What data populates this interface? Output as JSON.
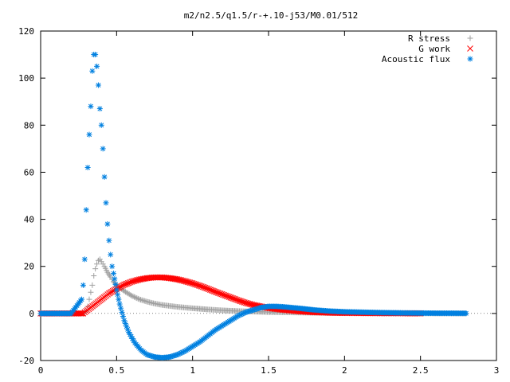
{
  "chart_data": {
    "type": "scatter",
    "title": "m2/n2.5/q1.5/r-+.10-j53/M0.01/512",
    "xlabel": "",
    "ylabel": "",
    "xlim": [
      0,
      3
    ],
    "ylim": [
      -20,
      120
    ],
    "x_ticks": [
      0,
      0.5,
      1,
      1.5,
      2,
      2.5,
      3
    ],
    "x_tick_labels": [
      "0",
      "0.5",
      "1",
      "1.5",
      "2",
      "2.5",
      "3"
    ],
    "y_ticks": [
      -20,
      0,
      20,
      40,
      60,
      80,
      100,
      120
    ],
    "y_tick_labels": [
      "-20",
      "0",
      "20",
      "40",
      "60",
      "80",
      "100",
      "120"
    ],
    "legend_position": "top-right",
    "series": [
      {
        "name": "R stress",
        "marker": "+",
        "color": "#a0a0a0",
        "x": [
          0.0,
          0.1,
          0.2,
          0.28,
          0.3,
          0.31,
          0.32,
          0.33,
          0.34,
          0.35,
          0.36,
          0.37,
          0.38,
          0.39,
          0.4,
          0.42,
          0.44,
          0.46,
          0.48,
          0.5,
          0.55,
          0.6,
          0.65,
          0.7,
          0.75,
          0.8,
          0.9,
          1.0,
          1.1,
          1.2,
          1.3,
          1.4,
          1.5,
          1.6,
          1.8,
          2.0,
          2.2,
          2.4,
          2.6,
          2.8
        ],
        "y": [
          0,
          0,
          0,
          0,
          1,
          3,
          6,
          9,
          12,
          16,
          19,
          21,
          22.5,
          23,
          22,
          20,
          17.5,
          15.5,
          13.5,
          12,
          9.5,
          7.5,
          6,
          5,
          4.2,
          3.6,
          2.8,
          2.2,
          1.7,
          1.3,
          1.0,
          0.8,
          0.6,
          0.5,
          0.3,
          0.2,
          0.1,
          0.05,
          0.02,
          0.01
        ]
      },
      {
        "name": "G work",
        "marker": "x",
        "color": "#ff0000",
        "x": [
          0.0,
          0.1,
          0.2,
          0.28,
          0.3,
          0.35,
          0.4,
          0.45,
          0.5,
          0.55,
          0.6,
          0.65,
          0.7,
          0.75,
          0.8,
          0.85,
          0.9,
          0.95,
          1.0,
          1.05,
          1.1,
          1.15,
          1.2,
          1.25,
          1.3,
          1.35,
          1.4,
          1.5,
          1.6,
          1.7,
          1.8,
          1.9,
          2.0,
          2.2,
          2.4,
          2.5
        ],
        "y": [
          0,
          0,
          0,
          0,
          1,
          3.5,
          6,
          8.5,
          10.5,
          12.2,
          13.5,
          14.4,
          15,
          15.3,
          15.3,
          15,
          14.5,
          13.7,
          12.8,
          11.7,
          10.5,
          9.2,
          8,
          6.8,
          5.6,
          4.5,
          3.6,
          2.3,
          1.5,
          0.9,
          0.5,
          0.3,
          0.2,
          0.1,
          0.05,
          0.02
        ]
      },
      {
        "name": "Acoustic flux",
        "marker": "*",
        "color": "#0080e0",
        "x": [
          0.0,
          0.1,
          0.2,
          0.27,
          0.28,
          0.29,
          0.3,
          0.31,
          0.32,
          0.33,
          0.34,
          0.35,
          0.36,
          0.37,
          0.38,
          0.39,
          0.4,
          0.41,
          0.42,
          0.43,
          0.44,
          0.45,
          0.46,
          0.47,
          0.48,
          0.5,
          0.52,
          0.55,
          0.58,
          0.62,
          0.66,
          0.7,
          0.75,
          0.8,
          0.85,
          0.9,
          0.95,
          1.0,
          1.05,
          1.1,
          1.15,
          1.2,
          1.25,
          1.3,
          1.35,
          1.4,
          1.45,
          1.5,
          1.55,
          1.6,
          1.7,
          1.8,
          1.9,
          2.0,
          2.2,
          2.4,
          2.6,
          2.8
        ],
        "y": [
          0,
          0,
          0,
          6,
          12,
          23,
          44,
          62,
          76,
          88,
          103,
          110,
          110,
          105,
          97,
          87,
          80,
          70,
          58,
          47,
          38,
          31,
          25,
          20,
          17,
          10,
          4,
          -3,
          -8,
          -12.5,
          -15.5,
          -17.5,
          -18.5,
          -18.8,
          -18.5,
          -17.5,
          -16,
          -14,
          -12,
          -9.5,
          -7,
          -5,
          -3,
          -1,
          0.5,
          1.5,
          2.5,
          3,
          3,
          2.8,
          2.2,
          1.5,
          1.0,
          0.7,
          0.4,
          0.2,
          0.1,
          0.05
        ]
      }
    ]
  }
}
